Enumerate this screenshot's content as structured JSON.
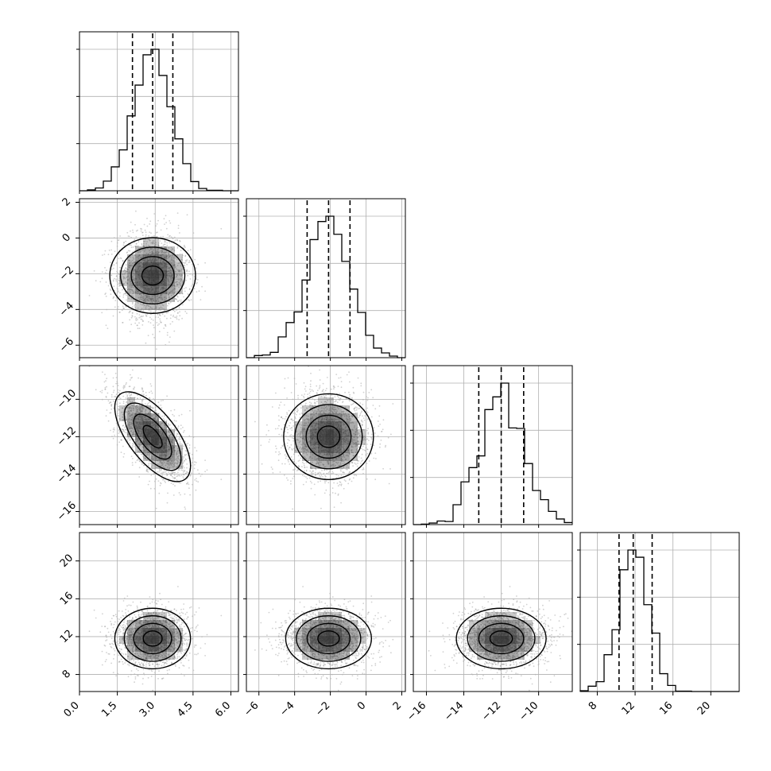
{
  "chart_data": {
    "type": "corner",
    "n_params": 4,
    "histogram_bins": 20,
    "contour_levels": [
      0.5,
      1.0,
      1.5,
      2.0
    ],
    "quantiles": [
      0.16,
      0.5,
      0.84
    ],
    "grid": true,
    "colors": {
      "line": "#000000",
      "grid": "#b0b0b0",
      "points": "#9a9a9a",
      "density": "#222222"
    },
    "params": [
      {
        "mean": 2.9,
        "sd": 0.75,
        "range": [
          0.0,
          6.3
        ],
        "ticks": [
          0.0,
          1.5,
          3.0,
          4.5,
          6.0
        ],
        "tick_labels": [
          "0.0",
          "1.5",
          "3.0",
          "4.5",
          "6.0"
        ],
        "quantile_values": [
          2.1,
          2.9,
          3.7
        ]
      },
      {
        "mean": -2.1,
        "sd": 1.2,
        "range": [
          -6.7,
          2.2
        ],
        "ticks": [
          -6,
          -4,
          -2,
          0,
          2
        ],
        "tick_labels": [
          "−6",
          "−4",
          "−2",
          "0",
          "2"
        ],
        "quantile_values": [
          -3.3,
          -2.1,
          -0.9
        ]
      },
      {
        "mean": -12.0,
        "sd": 1.2,
        "range": [
          -16.7,
          -8.2
        ],
        "ticks": [
          -16,
          -14,
          -12,
          -10
        ],
        "tick_labels": [
          "−16",
          "−14",
          "−12",
          "−10"
        ],
        "quantile_values": [
          -13.2,
          -12.0,
          -10.8
        ]
      },
      {
        "mean": 11.8,
        "sd": 1.6,
        "range": [
          6.2,
          23.0
        ],
        "ticks": [
          8,
          12,
          16,
          20
        ],
        "tick_labels": [
          "8",
          "12",
          "16",
          "20"
        ],
        "quantile_values": [
          10.3,
          11.8,
          13.8
        ]
      }
    ],
    "correlations": [
      [
        1.0,
        0.0,
        -0.65,
        0.0
      ],
      [
        0.0,
        1.0,
        0.0,
        0.0
      ],
      [
        -0.65,
        0.0,
        1.0,
        0.0
      ],
      [
        0.0,
        0.0,
        0.0,
        1.0
      ]
    ]
  }
}
